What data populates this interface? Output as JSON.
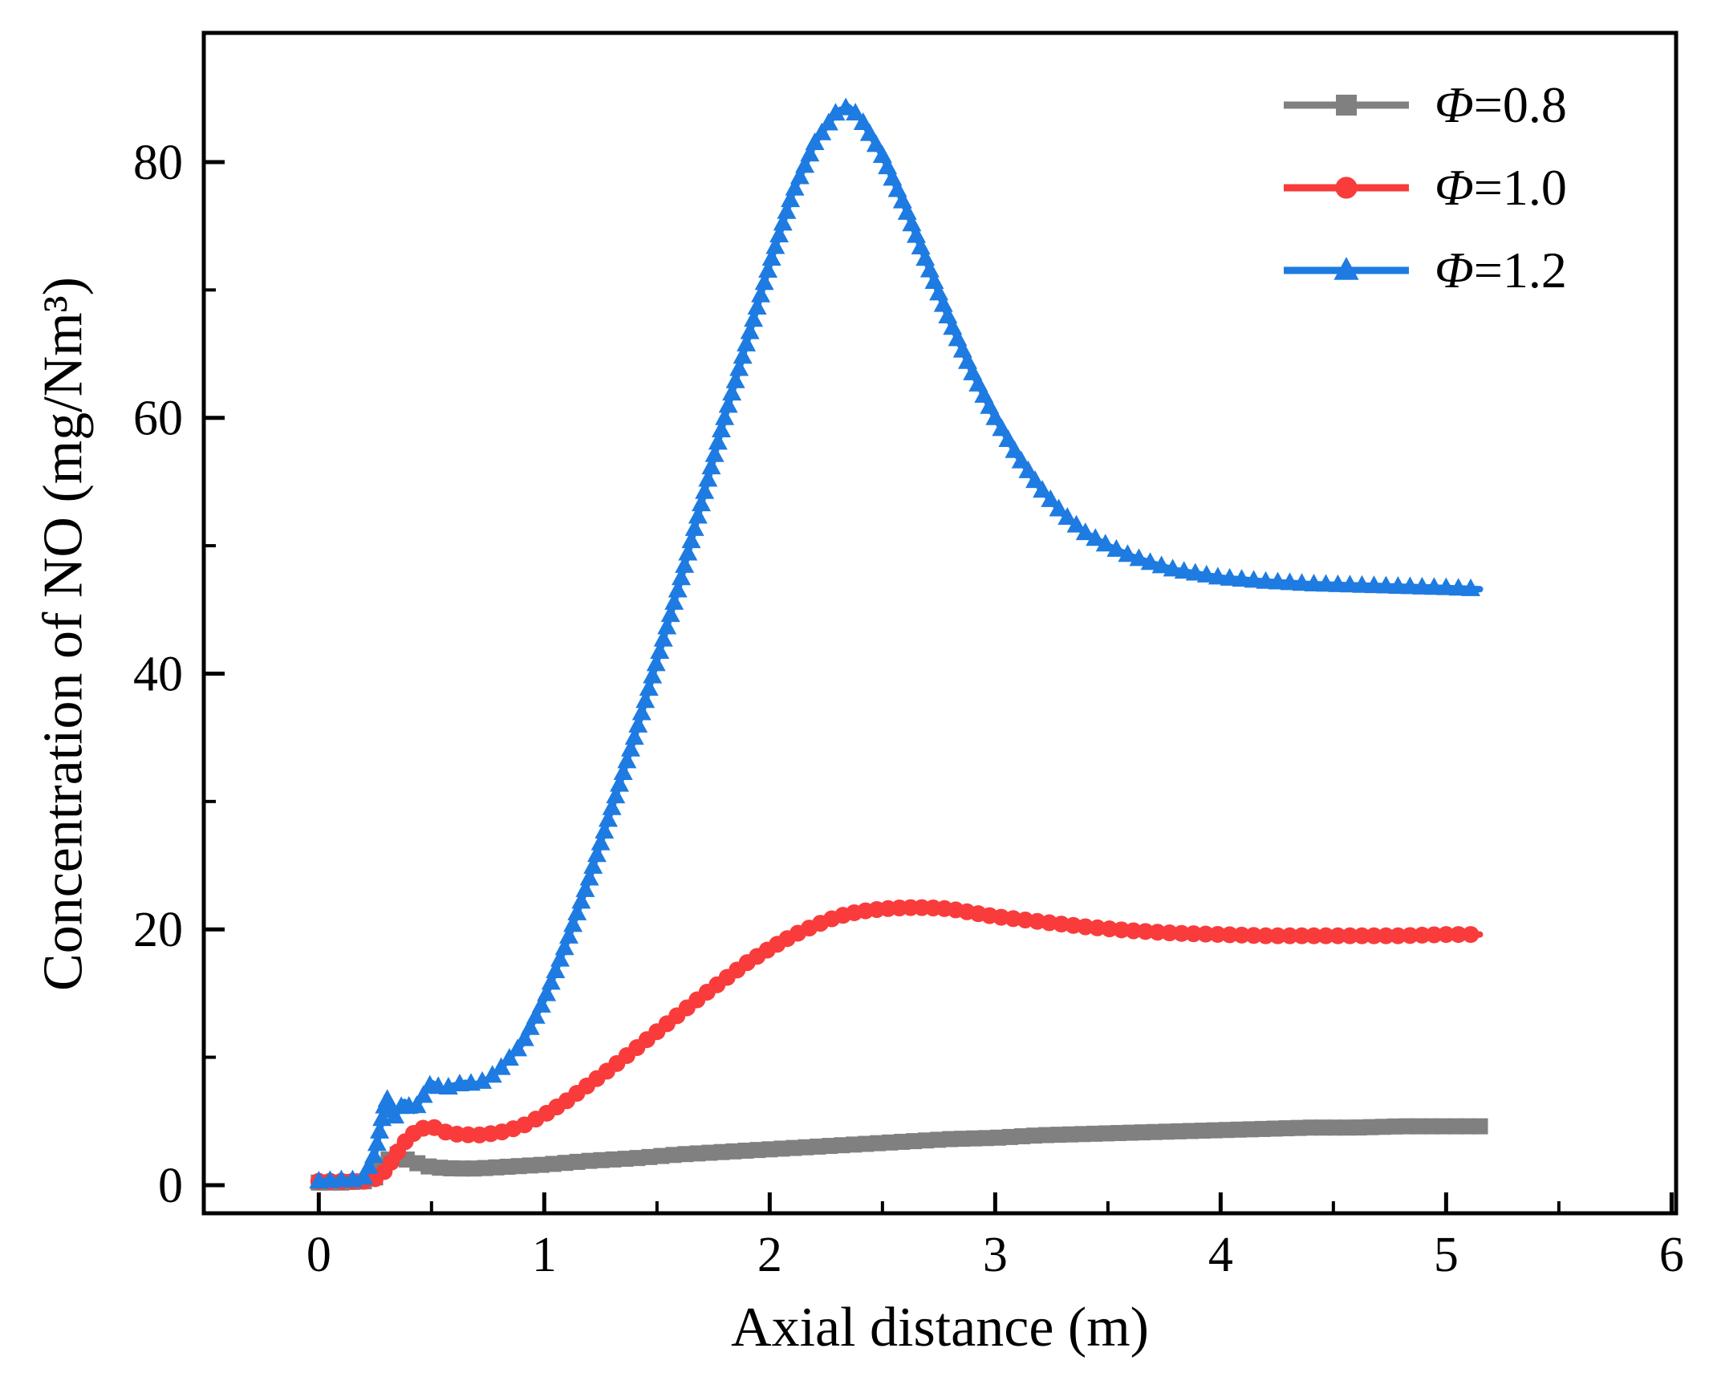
{
  "chart_data": {
    "type": "line",
    "title": "",
    "xlabel": "Axial distance (m)",
    "ylabel": "Concentration of NO  (mg/Nm³)",
    "xlim": [
      -0.51,
      6.02
    ],
    "ylim": [
      -2.2,
      90.1
    ],
    "x_major_ticks": [
      0,
      1,
      2,
      3,
      4,
      5,
      6
    ],
    "x_minor_ticks": [
      0.5,
      1.5,
      2.5,
      3.5,
      4.5,
      5.5
    ],
    "y_major_ticks": [
      0,
      20,
      40,
      60,
      80
    ],
    "y_minor_ticks": [
      10,
      30,
      50,
      70
    ],
    "grid": false,
    "legend_position": "top-right",
    "axis_color": "#000000",
    "series": [
      {
        "name": "Φ=0.8",
        "symbol": "Φ",
        "value_label": "=0.8",
        "color": "#808080",
        "marker": "square",
        "points": [
          [
            0,
            0.2
          ],
          [
            0.1,
            0.2
          ],
          [
            0.2,
            0.3
          ],
          [
            0.25,
            0.6
          ],
          [
            0.3,
            1.9
          ],
          [
            0.35,
            2.4
          ],
          [
            0.4,
            1.9
          ],
          [
            0.5,
            1.4
          ],
          [
            0.6,
            1.3
          ],
          [
            0.7,
            1.3
          ],
          [
            0.8,
            1.4
          ],
          [
            0.9,
            1.5
          ],
          [
            1.0,
            1.6
          ],
          [
            1.2,
            1.9
          ],
          [
            1.4,
            2.1
          ],
          [
            1.6,
            2.4
          ],
          [
            1.8,
            2.6
          ],
          [
            2.0,
            2.8
          ],
          [
            2.2,
            3.0
          ],
          [
            2.4,
            3.2
          ],
          [
            2.6,
            3.4
          ],
          [
            2.8,
            3.6
          ],
          [
            3.0,
            3.7
          ],
          [
            3.2,
            3.9
          ],
          [
            3.4,
            4.0
          ],
          [
            3.6,
            4.1
          ],
          [
            3.8,
            4.2
          ],
          [
            4.0,
            4.3
          ],
          [
            4.2,
            4.4
          ],
          [
            4.4,
            4.5
          ],
          [
            4.6,
            4.5
          ],
          [
            4.8,
            4.6
          ],
          [
            5.0,
            4.6
          ],
          [
            5.15,
            4.6
          ]
        ]
      },
      {
        "name": "Φ=1.0",
        "symbol": "Φ",
        "value_label": "=1.0",
        "color": "#F93B3B",
        "marker": "circle",
        "points": [
          [
            0,
            0.3
          ],
          [
            0.1,
            0.3
          ],
          [
            0.2,
            0.3
          ],
          [
            0.25,
            0.5
          ],
          [
            0.3,
            1.2
          ],
          [
            0.35,
            2.6
          ],
          [
            0.4,
            3.8
          ],
          [
            0.45,
            4.4
          ],
          [
            0.5,
            4.6
          ],
          [
            0.55,
            4.2
          ],
          [
            0.6,
            4.0
          ],
          [
            0.7,
            3.9
          ],
          [
            0.8,
            4.1
          ],
          [
            0.9,
            4.6
          ],
          [
            1.0,
            5.5
          ],
          [
            1.1,
            6.6
          ],
          [
            1.2,
            7.9
          ],
          [
            1.3,
            9.2
          ],
          [
            1.4,
            10.6
          ],
          [
            1.5,
            12.0
          ],
          [
            1.6,
            13.4
          ],
          [
            1.7,
            14.8
          ],
          [
            1.8,
            16.1
          ],
          [
            1.9,
            17.4
          ],
          [
            2.0,
            18.5
          ],
          [
            2.1,
            19.5
          ],
          [
            2.2,
            20.3
          ],
          [
            2.3,
            21.0
          ],
          [
            2.4,
            21.4
          ],
          [
            2.5,
            21.6
          ],
          [
            2.6,
            21.7
          ],
          [
            2.7,
            21.7
          ],
          [
            2.8,
            21.6
          ],
          [
            2.9,
            21.3
          ],
          [
            3.0,
            21.0
          ],
          [
            3.2,
            20.6
          ],
          [
            3.4,
            20.2
          ],
          [
            3.6,
            19.9
          ],
          [
            3.8,
            19.7
          ],
          [
            4.0,
            19.6
          ],
          [
            4.2,
            19.5
          ],
          [
            4.4,
            19.5
          ],
          [
            4.6,
            19.5
          ],
          [
            4.8,
            19.5
          ],
          [
            5.0,
            19.6
          ],
          [
            5.15,
            19.6
          ]
        ]
      },
      {
        "name": "Φ=1.2",
        "symbol": "Φ",
        "value_label": "=1.2",
        "color": "#1E7BE1",
        "marker": "triangle",
        "points": [
          [
            0,
            0.3
          ],
          [
            0.1,
            0.4
          ],
          [
            0.15,
            0.4
          ],
          [
            0.2,
            0.6
          ],
          [
            0.25,
            2.5
          ],
          [
            0.3,
            6.9
          ],
          [
            0.33,
            5.2
          ],
          [
            0.38,
            6.5
          ],
          [
            0.42,
            5.8
          ],
          [
            0.5,
            8.0
          ],
          [
            0.55,
            7.5
          ],
          [
            0.6,
            7.8
          ],
          [
            0.65,
            8.0
          ],
          [
            0.7,
            7.9
          ],
          [
            0.75,
            8.3
          ],
          [
            0.8,
            9.0
          ],
          [
            0.9,
            11.0
          ],
          [
            1.0,
            14.5
          ],
          [
            1.1,
            19.0
          ],
          [
            1.2,
            24.0
          ],
          [
            1.3,
            29.5
          ],
          [
            1.4,
            35.0
          ],
          [
            1.5,
            41.0
          ],
          [
            1.6,
            47.0
          ],
          [
            1.7,
            53.5
          ],
          [
            1.8,
            60.0
          ],
          [
            1.9,
            66.0
          ],
          [
            2.0,
            72.0
          ],
          [
            2.1,
            77.5
          ],
          [
            2.2,
            81.5
          ],
          [
            2.3,
            84.0
          ],
          [
            2.35,
            84.3
          ],
          [
            2.4,
            83.5
          ],
          [
            2.5,
            80.5
          ],
          [
            2.6,
            76.5
          ],
          [
            2.7,
            72.0
          ],
          [
            2.8,
            67.5
          ],
          [
            2.9,
            63.5
          ],
          [
            3.0,
            60.0
          ],
          [
            3.1,
            57.0
          ],
          [
            3.2,
            54.5
          ],
          [
            3.3,
            52.5
          ],
          [
            3.4,
            51.0
          ],
          [
            3.5,
            50.0
          ],
          [
            3.6,
            49.2
          ],
          [
            3.7,
            48.6
          ],
          [
            3.8,
            48.1
          ],
          [
            3.9,
            47.8
          ],
          [
            4.0,
            47.5
          ],
          [
            4.2,
            47.2
          ],
          [
            4.4,
            47.0
          ],
          [
            4.6,
            46.9
          ],
          [
            4.8,
            46.8
          ],
          [
            5.0,
            46.7
          ],
          [
            5.15,
            46.6
          ]
        ]
      }
    ]
  }
}
